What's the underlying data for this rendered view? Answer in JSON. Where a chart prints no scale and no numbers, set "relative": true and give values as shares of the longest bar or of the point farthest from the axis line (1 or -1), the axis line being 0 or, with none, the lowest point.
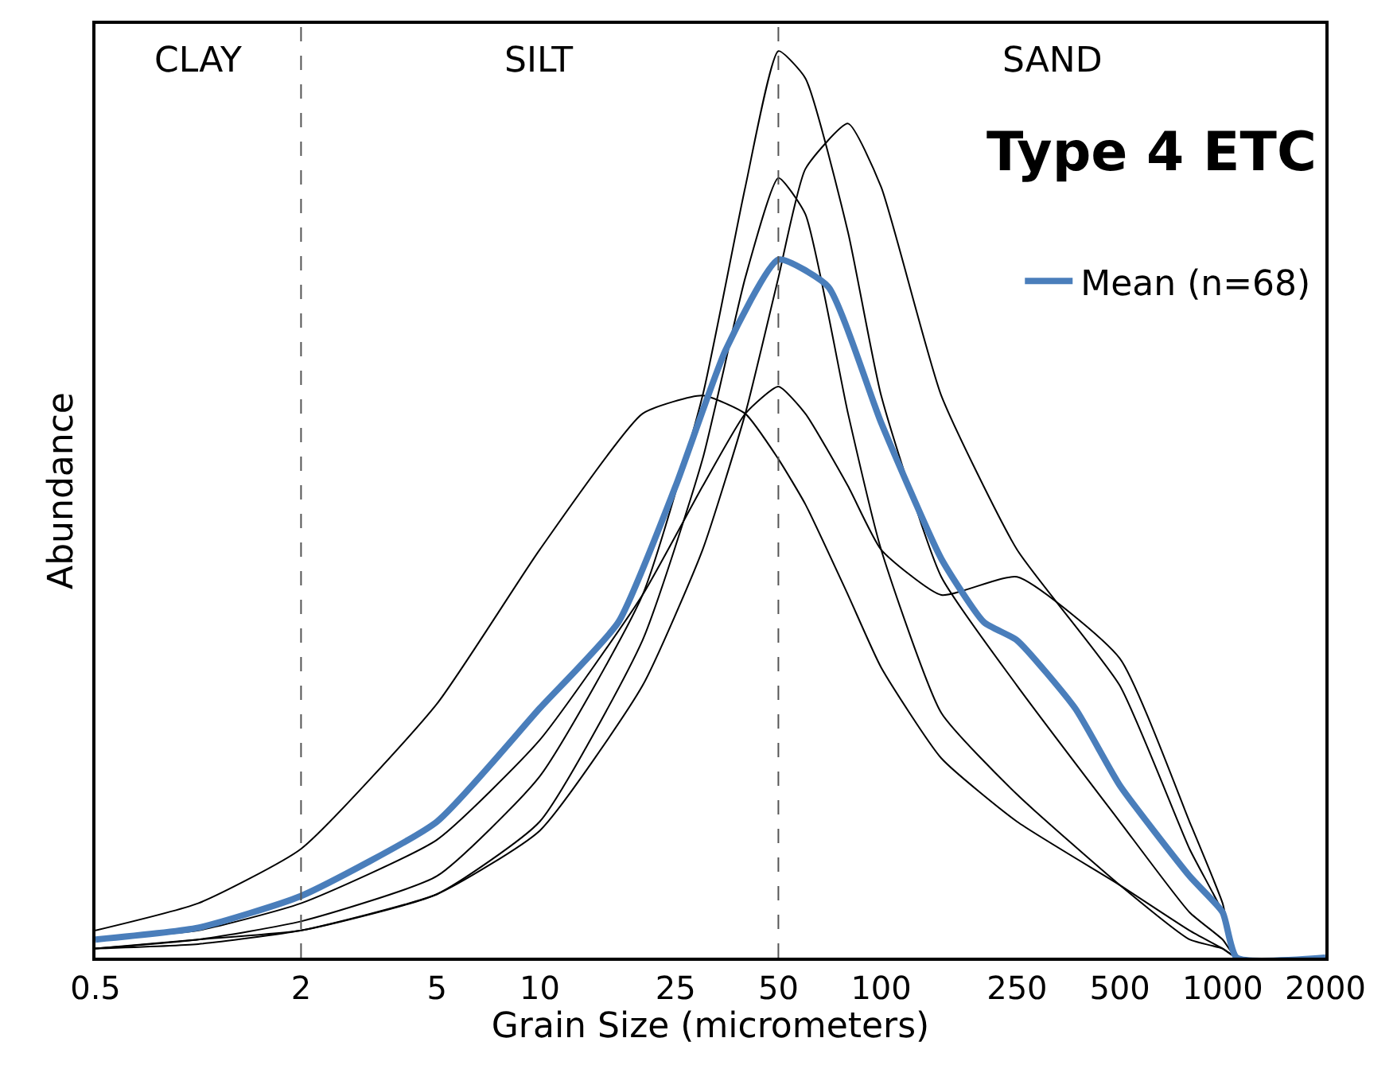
{
  "chart_data": {
    "type": "line",
    "title": "Type 4 ETC",
    "xlabel": "Grain Size (micrometers)",
    "ylabel": "Abundance",
    "relative": true,
    "log": "x",
    "xlim": [
      0.5,
      2000
    ],
    "xticks": [
      0.5,
      2,
      5,
      10,
      25,
      50,
      100,
      250,
      500,
      1000,
      2000
    ],
    "legend": "top right",
    "marker": "none",
    "line_style": "solid",
    "x": [
      0.5,
      1,
      2,
      5,
      10,
      20,
      30,
      40,
      50,
      60,
      80,
      100,
      150,
      250,
      500,
      800,
      1000,
      1100,
      2000
    ],
    "ref_lines": [
      {
        "axis": "x",
        "value": 2,
        "label": null,
        "line_style": "dashed",
        "color": "#555555"
      },
      {
        "axis": "x",
        "value": 50,
        "label": null,
        "line_style": "dashed",
        "color": "#555555"
      }
    ],
    "annotations": [
      "CLAY",
      "SILT",
      "SAND"
    ],
    "series": [
      {
        "color": "#000000",
        "values": [
          0.01,
          0.02,
          0.04,
          0.09,
          0.2,
          0.4,
          0.62,
          0.85,
          1.0,
          0.97,
          0.8,
          0.62,
          0.42,
          0.3,
          0.15,
          0.05,
          0.02,
          0,
          0
        ]
      },
      {
        "color": "#000000",
        "values": [
          0.03,
          0.06,
          0.12,
          0.28,
          0.45,
          0.6,
          0.62,
          0.6,
          0.55,
          0.5,
          0.4,
          0.32,
          0.22,
          0.15,
          0.08,
          0.03,
          0.01,
          0,
          0
        ]
      },
      {
        "color": "#000000",
        "values": [
          0.01,
          0.015,
          0.03,
          0.07,
          0.14,
          0.3,
          0.45,
          0.6,
          0.75,
          0.87,
          0.92,
          0.85,
          0.62,
          0.45,
          0.3,
          0.12,
          0.05,
          0,
          0
        ]
      },
      {
        "color": "#000000",
        "values": [
          0.02,
          0.03,
          0.06,
          0.13,
          0.24,
          0.4,
          0.52,
          0.6,
          0.63,
          0.6,
          0.52,
          0.45,
          0.4,
          0.42,
          0.33,
          0.15,
          0.06,
          0,
          0
        ]
      },
      {
        "color": "#000000",
        "values": [
          0.01,
          0.02,
          0.03,
          0.07,
          0.15,
          0.35,
          0.55,
          0.75,
          0.86,
          0.82,
          0.6,
          0.45,
          0.27,
          0.18,
          0.08,
          0.02,
          0.01,
          0,
          0
        ]
      },
      {
        "name": "Mean (n=68)",
        "color": "#4a7ebb",
        "x": [
          0.5,
          1,
          2,
          5,
          10,
          17,
          25,
          35,
          50,
          70,
          100,
          150,
          200,
          250,
          370,
          500,
          800,
          1000,
          1100,
          2000
        ],
        "values": [
          0.02,
          0.033,
          0.068,
          0.15,
          0.275,
          0.37,
          0.52,
          0.67,
          0.77,
          0.74,
          0.59,
          0.44,
          0.37,
          0.35,
          0.275,
          0.19,
          0.09,
          0.05,
          0,
          0
        ]
      }
    ]
  }
}
